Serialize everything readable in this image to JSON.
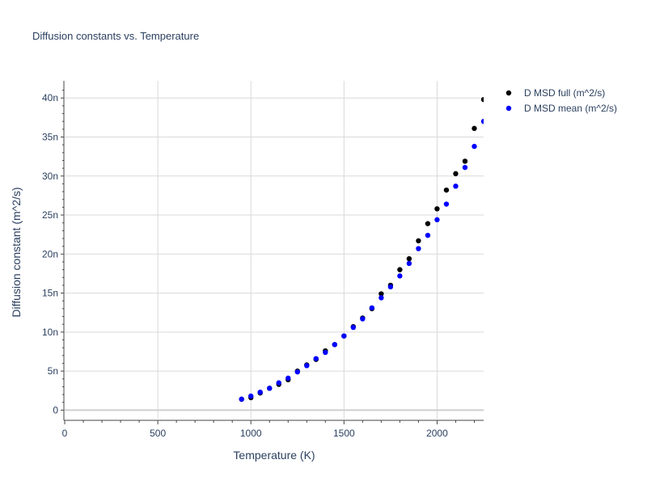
{
  "chart_data": {
    "type": "scatter",
    "title": "Diffusion constants vs. Temperature",
    "xlabel": "Temperature (K)",
    "ylabel": "Diffusion constant (m^2/s)",
    "xlim": [
      0,
      2250
    ],
    "ylim": [
      -1.1e-09,
      4.22e-08
    ],
    "x_ticks": [
      0,
      500,
      1000,
      1500,
      2000
    ],
    "x_tick_labels": [
      "0",
      "500",
      "1000",
      "1500",
      "2000"
    ],
    "y_ticks": [
      0,
      5e-09,
      1e-08,
      1.5e-08,
      2e-08,
      2.5e-08,
      3e-08,
      3.5e-08,
      4e-08
    ],
    "y_tick_labels": [
      "0",
      "5n",
      "10n",
      "15n",
      "20n",
      "25n",
      "30n",
      "35n",
      "40n"
    ],
    "grid": true,
    "legend_position": "top-right outside",
    "series": [
      {
        "name": "D MSD full (m^2/s)",
        "color": "#000000",
        "x": [
          950,
          1000,
          1050,
          1100,
          1150,
          1200,
          1250,
          1300,
          1350,
          1400,
          1450,
          1500,
          1550,
          1600,
          1650,
          1700,
          1750,
          1800,
          1850,
          1900,
          1950,
          2000,
          2050,
          2100,
          2150,
          2200,
          2250
        ],
        "y": [
          1.4e-09,
          1.6e-09,
          2.2e-09,
          2.8e-09,
          3.3e-09,
          3.9e-09,
          5e-09,
          5.8e-09,
          6.5e-09,
          7.6e-09,
          8.4e-09,
          9.5e-09,
          1.07e-08,
          1.18e-08,
          1.3e-08,
          1.49e-08,
          1.6e-08,
          1.8e-08,
          1.94e-08,
          2.17e-08,
          2.39e-08,
          2.58e-08,
          2.82e-08,
          3.03e-08,
          3.19e-08,
          3.61e-08,
          3.98e-08
        ]
      },
      {
        "name": "D MSD mean (m^2/s)",
        "color": "#0000ff",
        "x": [
          950,
          1000,
          1050,
          1100,
          1150,
          1200,
          1250,
          1300,
          1350,
          1400,
          1450,
          1500,
          1550,
          1600,
          1650,
          1700,
          1750,
          1800,
          1850,
          1900,
          1950,
          2000,
          2050,
          2100,
          2150,
          2200,
          2250
        ],
        "y": [
          1.4e-09,
          1.8e-09,
          2.3e-09,
          2.8e-09,
          3.5e-09,
          4.1e-09,
          4.9e-09,
          5.7e-09,
          6.6e-09,
          7.4e-09,
          8.4e-09,
          9.5e-09,
          1.06e-08,
          1.17e-08,
          1.31e-08,
          1.44e-08,
          1.58e-08,
          1.72e-08,
          1.88e-08,
          2.07e-08,
          2.24e-08,
          2.44e-08,
          2.64e-08,
          2.87e-08,
          3.11e-08,
          3.38e-08,
          3.7e-08
        ]
      }
    ]
  }
}
